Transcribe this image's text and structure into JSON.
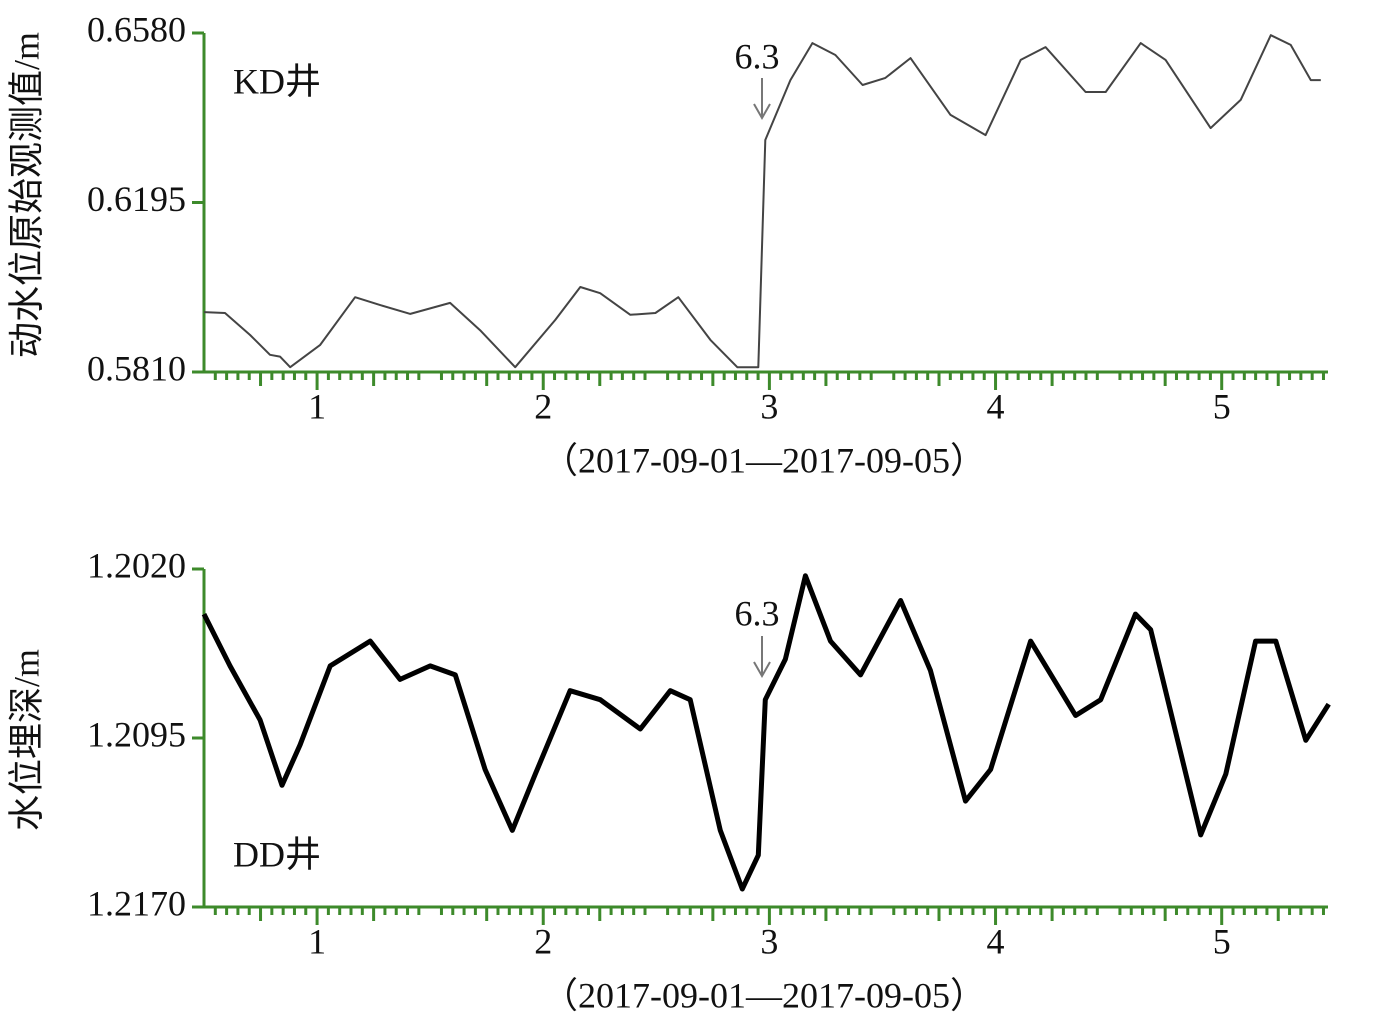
{
  "chart_data": [
    {
      "type": "line",
      "y_label": "动水位原始观测值/m",
      "x_label": "（2017-09-01—2017-09-05）",
      "well_label": "KD井",
      "event_label": "6.3",
      "xlim": [
        0.5,
        5.47
      ],
      "xticks": [
        1,
        2,
        3,
        4,
        5
      ],
      "ylim": [
        0.581,
        0.658
      ],
      "yticks": [
        {
          "value": 0.581,
          "label": "0.5810"
        },
        {
          "value": 0.6195,
          "label": "0.6195"
        },
        {
          "value": 0.658,
          "label": "0.6580"
        }
      ],
      "x": [
        0.5,
        0.593,
        0.704,
        0.792,
        0.836,
        0.881,
        1.013,
        1.168,
        1.279,
        1.412,
        1.588,
        1.721,
        1.876,
        2.053,
        2.164,
        2.252,
        2.385,
        2.496,
        2.597,
        2.739,
        2.858,
        2.951,
        2.982,
        3.093,
        3.19,
        3.292,
        3.412,
        3.513,
        3.624,
        3.801,
        3.956,
        4.111,
        4.221,
        4.398,
        4.487,
        4.642,
        4.752,
        4.951,
        5.084,
        5.217,
        5.305,
        5.394,
        5.438
      ],
      "series": [
        {
          "color": "#444444",
          "width": 2,
          "values": [
            0.5946,
            0.5944,
            0.5894,
            0.5849,
            0.5845,
            0.5821,
            0.5871,
            0.598,
            0.5962,
            0.5942,
            0.5967,
            0.5905,
            0.5821,
            0.5928,
            0.6003,
            0.5989,
            0.594,
            0.5944,
            0.598,
            0.5883,
            0.5821,
            0.5821,
            0.6337,
            0.6473,
            0.6557,
            0.653,
            0.6462,
            0.6478,
            0.6523,
            0.6394,
            0.6348,
            0.6519,
            0.6548,
            0.6446,
            0.6446,
            0.6557,
            0.6519,
            0.6364,
            0.6428,
            0.6575,
            0.6553,
            0.6473,
            0.6473
          ]
        }
      ]
    },
    {
      "type": "line",
      "y_label": "水位埋深/m",
      "x_label": "（2017-09-01—2017-09-05）",
      "well_label": "DD井",
      "event_label": "6.3",
      "xlim": [
        0.5,
        5.47
      ],
      "xticks": [
        1,
        2,
        3,
        4,
        5
      ],
      "ylim": [
        1.217,
        1.202
      ],
      "yticks": [
        {
          "value": 1.217,
          "label": "1.2170"
        },
        {
          "value": 1.2095,
          "label": "1.2095"
        },
        {
          "value": 1.202,
          "label": "1.2020"
        }
      ],
      "x": [
        0.5,
        0.615,
        0.748,
        0.845,
        0.925,
        1.058,
        1.235,
        1.367,
        1.5,
        1.611,
        1.743,
        1.863,
        1.965,
        2.119,
        2.252,
        2.429,
        2.562,
        2.65,
        2.783,
        2.88,
        2.951,
        2.982,
        3.071,
        3.159,
        3.27,
        3.403,
        3.58,
        3.712,
        3.867,
        3.978,
        4.155,
        4.354,
        4.465,
        4.619,
        4.686,
        4.907,
        5.018,
        5.15,
        5.239,
        5.372,
        5.473
      ],
      "series": [
        {
          "color": "#000000",
          "width": 5,
          "values": [
            1.204,
            1.2063,
            1.2087,
            1.2116,
            1.2098,
            1.2063,
            1.2052,
            1.2069,
            1.2063,
            1.2067,
            1.2109,
            1.2136,
            1.2111,
            1.2074,
            1.2078,
            1.2091,
            1.2074,
            1.2078,
            1.2136,
            1.2162,
            1.2147,
            1.2078,
            1.206,
            1.2023,
            1.2052,
            1.2067,
            1.2034,
            1.2065,
            1.2123,
            1.2109,
            1.2052,
            1.2085,
            1.2078,
            1.204,
            1.2047,
            1.2138,
            1.2111,
            1.2052,
            1.2052,
            1.2096,
            1.208
          ]
        }
      ]
    }
  ]
}
